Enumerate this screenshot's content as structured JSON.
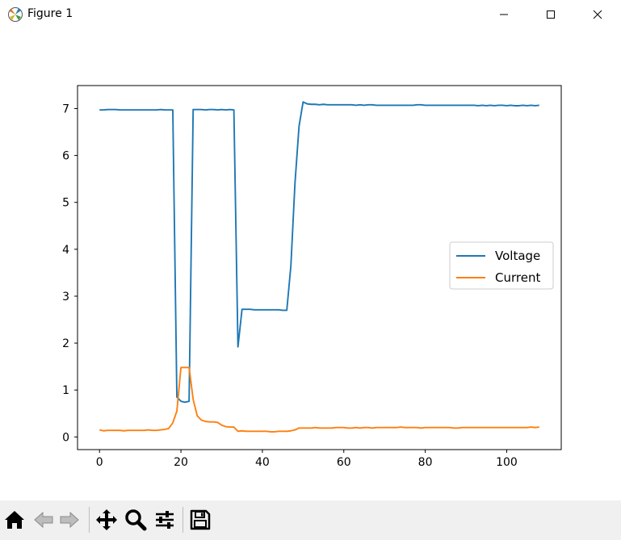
{
  "window": {
    "title": "Figure 1",
    "icons": [
      "matplotlib-icon",
      "minimize-icon",
      "maximize-icon",
      "close-icon"
    ]
  },
  "toolbar": {
    "icons": [
      "home-icon",
      "back-icon",
      "forward-icon",
      "pan-icon",
      "zoom-icon",
      "configure-subplots-icon",
      "save-icon"
    ]
  },
  "chart_data": {
    "type": "line",
    "title": "",
    "xlabel": "",
    "ylabel": "",
    "xlim": [
      -5.4,
      113.4
    ],
    "ylim": [
      -0.27,
      7.49
    ],
    "xticks": [
      0,
      20,
      40,
      60,
      80,
      100
    ],
    "yticks": [
      0,
      1,
      2,
      3,
      4,
      5,
      6,
      7
    ],
    "xtick_labels": [
      "0",
      "20",
      "40",
      "60",
      "80",
      "100"
    ],
    "ytick_labels": [
      "0",
      "1",
      "2",
      "3",
      "4",
      "5",
      "6",
      "7"
    ],
    "grid": false,
    "legend": {
      "position": "center-right",
      "entries": [
        "Voltage",
        "Current"
      ]
    },
    "series": [
      {
        "name": "Voltage",
        "color": "#1f77b4",
        "x": [
          0,
          1,
          2,
          3,
          4,
          5,
          6,
          7,
          8,
          9,
          10,
          11,
          12,
          13,
          14,
          15,
          16,
          17,
          18,
          19,
          20,
          21,
          22,
          23,
          24,
          25,
          26,
          27,
          28,
          29,
          30,
          31,
          32,
          33,
          34,
          35,
          36,
          37,
          38,
          39,
          40,
          41,
          42,
          43,
          44,
          45,
          46,
          47,
          48,
          49,
          50,
          51,
          52,
          53,
          54,
          55,
          56,
          57,
          58,
          59,
          60,
          61,
          62,
          63,
          64,
          65,
          66,
          67,
          68,
          69,
          70,
          71,
          72,
          73,
          74,
          75,
          76,
          77,
          78,
          79,
          80,
          81,
          82,
          83,
          84,
          85,
          86,
          87,
          88,
          89,
          90,
          91,
          92,
          93,
          94,
          95,
          96,
          97,
          98,
          99,
          100,
          101,
          102,
          103,
          104,
          105,
          106,
          107,
          108
        ],
        "y": [
          6.97,
          6.97,
          6.98,
          6.98,
          6.98,
          6.97,
          6.97,
          6.97,
          6.97,
          6.97,
          6.97,
          6.97,
          6.97,
          6.97,
          6.97,
          6.98,
          6.97,
          6.97,
          6.97,
          0.85,
          0.76,
          0.74,
          0.76,
          6.98,
          6.98,
          6.98,
          6.97,
          6.98,
          6.98,
          6.97,
          6.98,
          6.97,
          6.98,
          6.97,
          1.92,
          2.72,
          2.72,
          2.72,
          2.71,
          2.71,
          2.71,
          2.71,
          2.71,
          2.71,
          2.71,
          2.7,
          2.7,
          3.65,
          5.4,
          6.62,
          7.14,
          7.1,
          7.09,
          7.09,
          7.08,
          7.09,
          7.08,
          7.08,
          7.08,
          7.08,
          7.08,
          7.08,
          7.08,
          7.07,
          7.08,
          7.07,
          7.08,
          7.08,
          7.07,
          7.07,
          7.07,
          7.07,
          7.07,
          7.07,
          7.07,
          7.07,
          7.07,
          7.07,
          7.08,
          7.08,
          7.07,
          7.07,
          7.07,
          7.07,
          7.07,
          7.07,
          7.07,
          7.07,
          7.07,
          7.07,
          7.07,
          7.07,
          7.07,
          7.06,
          7.07,
          7.06,
          7.07,
          7.06,
          7.07,
          7.07,
          7.06,
          7.07,
          7.06,
          7.06,
          7.07,
          7.06,
          7.07,
          7.06,
          7.07
        ]
      },
      {
        "name": "Current",
        "color": "#ff7f0e",
        "x": [
          0,
          1,
          2,
          3,
          4,
          5,
          6,
          7,
          8,
          9,
          10,
          11,
          12,
          13,
          14,
          15,
          16,
          17,
          18,
          19,
          20,
          21,
          22,
          23,
          24,
          25,
          26,
          27,
          28,
          29,
          30,
          31,
          32,
          33,
          34,
          35,
          36,
          37,
          38,
          39,
          40,
          41,
          42,
          43,
          44,
          45,
          46,
          47,
          48,
          49,
          50,
          51,
          52,
          53,
          54,
          55,
          56,
          57,
          58,
          59,
          60,
          61,
          62,
          63,
          64,
          65,
          66,
          67,
          68,
          69,
          70,
          71,
          72,
          73,
          74,
          75,
          76,
          77,
          78,
          79,
          80,
          81,
          82,
          83,
          84,
          85,
          86,
          87,
          88,
          89,
          90,
          91,
          92,
          93,
          94,
          95,
          96,
          97,
          98,
          99,
          100,
          101,
          102,
          103,
          104,
          105,
          106,
          107,
          108
        ],
        "y": [
          0.15,
          0.13,
          0.14,
          0.14,
          0.14,
          0.14,
          0.13,
          0.14,
          0.14,
          0.14,
          0.14,
          0.14,
          0.15,
          0.14,
          0.14,
          0.15,
          0.16,
          0.18,
          0.3,
          0.55,
          1.48,
          1.48,
          1.48,
          0.8,
          0.45,
          0.36,
          0.33,
          0.32,
          0.32,
          0.31,
          0.25,
          0.22,
          0.21,
          0.21,
          0.12,
          0.13,
          0.12,
          0.12,
          0.12,
          0.12,
          0.12,
          0.12,
          0.11,
          0.11,
          0.12,
          0.12,
          0.12,
          0.13,
          0.15,
          0.19,
          0.19,
          0.19,
          0.19,
          0.2,
          0.19,
          0.19,
          0.19,
          0.19,
          0.2,
          0.2,
          0.2,
          0.19,
          0.19,
          0.2,
          0.19,
          0.2,
          0.2,
          0.19,
          0.2,
          0.2,
          0.2,
          0.2,
          0.2,
          0.2,
          0.21,
          0.2,
          0.2,
          0.2,
          0.2,
          0.19,
          0.2,
          0.2,
          0.2,
          0.2,
          0.2,
          0.2,
          0.2,
          0.19,
          0.19,
          0.2,
          0.2,
          0.2,
          0.2,
          0.2,
          0.2,
          0.2,
          0.2,
          0.2,
          0.2,
          0.2,
          0.2,
          0.2,
          0.2,
          0.2,
          0.2,
          0.2,
          0.21,
          0.2,
          0.21
        ]
      }
    ]
  }
}
